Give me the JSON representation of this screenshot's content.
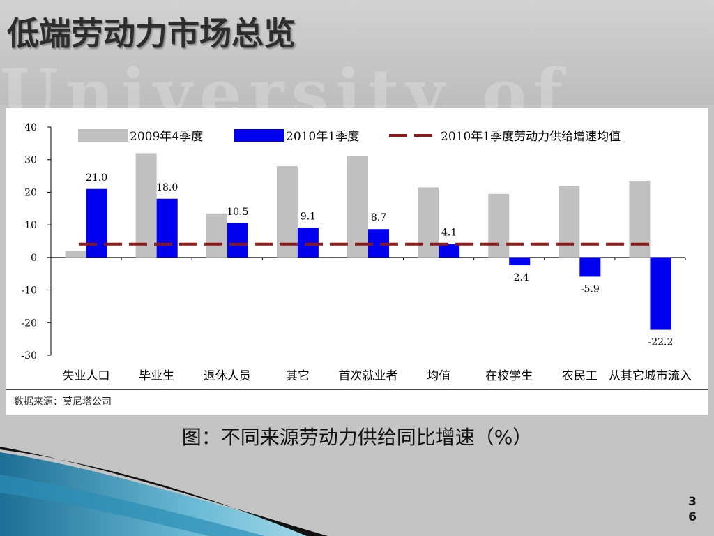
{
  "slide": {
    "title": "低端劳动力市场总览",
    "caption": "图：不同来源劳动力供给同比增速（%）",
    "page_number_line1": "3",
    "page_number_line2": "6",
    "watermark": "University of"
  },
  "chart_data": {
    "type": "bar",
    "categories": [
      "失业人口",
      "毕业生",
      "退休人员",
      "其它",
      "首次就业者",
      "均值",
      "在校学生",
      "农民工",
      "从其它城市流入"
    ],
    "series": [
      {
        "name": "2009年4季度",
        "color": "#c0c0c0",
        "values": [
          2,
          32,
          13.5,
          28,
          31,
          21.5,
          19.5,
          22,
          23.5
        ],
        "labels": [
          "",
          "",
          "",
          "",
          "",
          "",
          "",
          "",
          ""
        ]
      },
      {
        "name": "2010年1季度",
        "color": "#0000ee",
        "values": [
          21.0,
          18.0,
          10.5,
          9.1,
          8.7,
          4.1,
          -2.4,
          -5.9,
          -22.2
        ],
        "labels": [
          "21.0",
          "18.0",
          "10.5",
          "9.1",
          "8.7",
          "4.1",
          "-2.4",
          "-5.9",
          "-22.2"
        ]
      }
    ],
    "reference_line": {
      "name": "2010年1季度劳动力供给增速均值",
      "value": 4.1,
      "color": "#8b1a1a"
    },
    "yticks": [
      "40",
      "30",
      "20",
      "10",
      "0",
      "-10",
      "-20",
      "-30"
    ],
    "ylim": [
      -30,
      40
    ],
    "legend_position": "top",
    "source": "数据来源：莫尼塔公司"
  }
}
